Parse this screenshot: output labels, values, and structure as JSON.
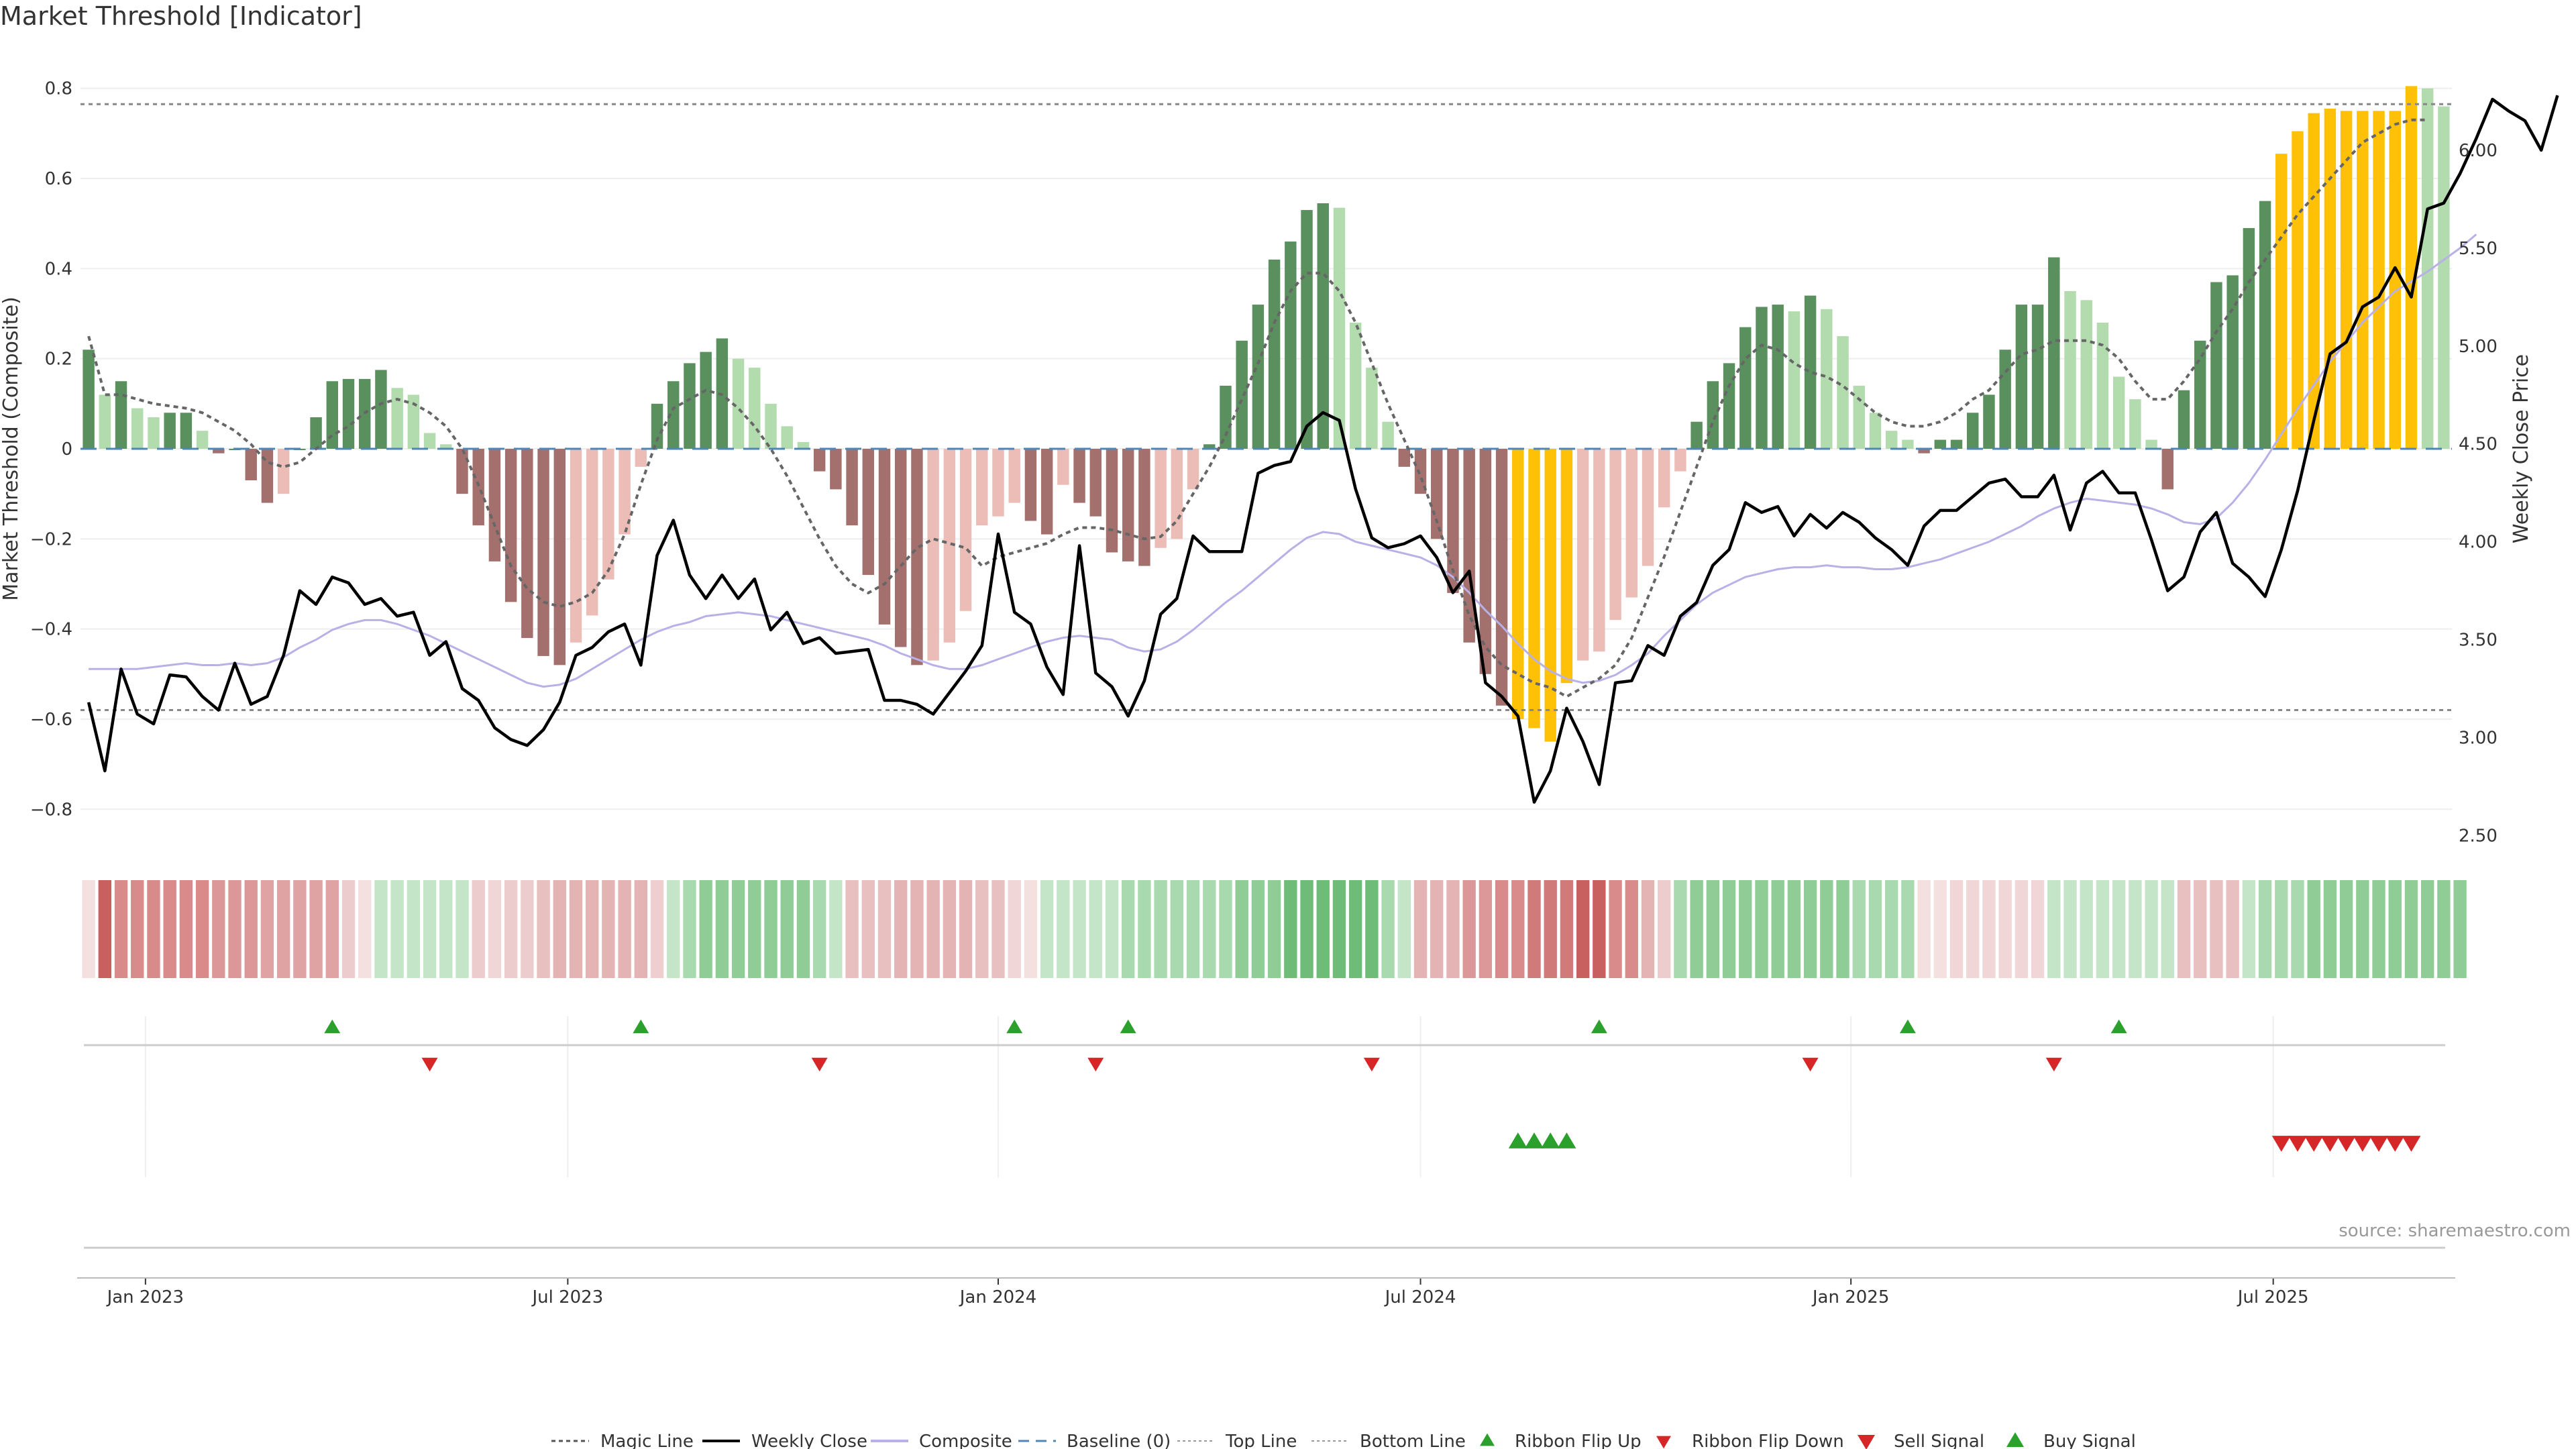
{
  "title": "Market Threshold [Indicator]",
  "source": "source: sharemaestro.com",
  "chart_data": {
    "type": "bar+line",
    "title": "Market Threshold [Indicator]",
    "ylabel": "Market Threshold (Composite)",
    "y2label": "Weekly Close Price",
    "ylim": [
      -0.88,
      0.88
    ],
    "y2lim": [
      2.45,
      6.5
    ],
    "yticks": [
      -0.8,
      -0.6,
      -0.4,
      -0.2,
      0,
      0.2,
      0.4,
      0.6,
      0.8
    ],
    "ytick_labels": [
      "−0.8",
      "−0.6",
      "−0.4",
      "−0.2",
      "0",
      "0.2",
      "0.4",
      "0.6",
      "0.8"
    ],
    "y2ticks": [
      2.5,
      3.0,
      3.5,
      4.0,
      4.5,
      5.0,
      5.5,
      6.0
    ],
    "y2tick_labels": [
      "2.50",
      "3.00",
      "3.50",
      "4.00",
      "4.50",
      "5.00",
      "5.50",
      "6.00"
    ],
    "xticks": [
      {
        "label": "Jan 2023",
        "week": 4
      },
      {
        "label": "Jul 2023",
        "week": 30
      },
      {
        "label": "Jan 2024",
        "week": 56.5
      },
      {
        "label": "Jul 2024",
        "week": 82.5
      },
      {
        "label": "Jan 2025",
        "week": 109
      },
      {
        "label": "Jul 2025",
        "week": 135
      }
    ],
    "top_line": 0.765,
    "bottom_line": -0.58,
    "baseline": 0,
    "composite_bars": [
      0.22,
      0.12,
      0.15,
      0.09,
      0.07,
      0.08,
      0.08,
      0.04,
      -0.01,
      0,
      -0.07,
      -0.12,
      -0.1,
      0,
      0.07,
      0.15,
      0.155,
      0.155,
      0.175,
      0.135,
      0.12,
      0.035,
      0.01,
      -0.1,
      -0.17,
      -0.25,
      -0.34,
      -0.42,
      -0.46,
      -0.48,
      -0.43,
      -0.37,
      -0.29,
      -0.19,
      -0.04,
      0.1,
      0.15,
      0.19,
      0.215,
      0.245,
      0.2,
      0.18,
      0.1,
      0.05,
      0.015,
      -0.05,
      -0.09,
      -0.17,
      -0.28,
      -0.39,
      -0.44,
      -0.48,
      -0.47,
      -0.43,
      -0.36,
      -0.17,
      -0.15,
      -0.12,
      -0.16,
      -0.19,
      -0.08,
      -0.12,
      -0.15,
      -0.23,
      -0.25,
      -0.26,
      -0.22,
      -0.2,
      -0.09,
      0.01,
      0.14,
      0.24,
      0.32,
      0.42,
      0.46,
      0.53,
      0.545,
      0.535,
      0.28,
      0.18,
      0.06,
      -0.04,
      -0.1,
      -0.2,
      -0.32,
      -0.43,
      -0.5,
      -0.57,
      -0.6,
      -0.62,
      -0.65,
      -0.52,
      -0.47,
      -0.45,
      -0.38,
      -0.33,
      -0.26,
      -0.13,
      -0.05,
      0.06,
      0.15,
      0.19,
      0.27,
      0.315,
      0.32,
      0.305,
      0.34,
      0.31,
      0.25,
      0.14,
      0.08,
      0.04,
      0.02,
      -0.01,
      0.02,
      0.02,
      0.08,
      0.12,
      0.22,
      0.32,
      0.32,
      0.425,
      0.35,
      0.33,
      0.28,
      0.16,
      0.11,
      0.02,
      -0.09,
      0.13,
      0.24,
      0.37,
      0.385,
      0.49,
      0.55,
      0.655,
      0.705,
      0.745,
      0.755,
      0.75,
      0.75,
      0.75,
      0.75,
      0.805,
      0.8,
      0.76
    ],
    "yellow_bars": [
      88,
      89,
      90,
      91,
      135,
      136,
      137,
      138,
      139,
      140,
      141,
      142,
      143
    ],
    "magic_line": [
      0.25,
      0.12,
      0.12,
      0.11,
      0.1,
      0.095,
      0.09,
      0.08,
      0.06,
      0.04,
      0.01,
      -0.03,
      -0.04,
      -0.03,
      0.0,
      0.03,
      0.05,
      0.08,
      0.1,
      0.11,
      0.1,
      0.08,
      0.05,
      0.0,
      -0.08,
      -0.17,
      -0.26,
      -0.31,
      -0.34,
      -0.35,
      -0.34,
      -0.32,
      -0.27,
      -0.19,
      -0.08,
      0.02,
      0.09,
      0.11,
      0.13,
      0.12,
      0.09,
      0.05,
      0.0,
      -0.06,
      -0.13,
      -0.2,
      -0.26,
      -0.3,
      -0.32,
      -0.3,
      -0.26,
      -0.22,
      -0.2,
      -0.21,
      -0.22,
      -0.26,
      -0.24,
      -0.23,
      -0.22,
      -0.21,
      -0.19,
      -0.175,
      -0.175,
      -0.18,
      -0.19,
      -0.2,
      -0.195,
      -0.16,
      -0.1,
      -0.04,
      0.03,
      0.11,
      0.19,
      0.28,
      0.35,
      0.39,
      0.39,
      0.35,
      0.28,
      0.19,
      0.1,
      0.02,
      -0.06,
      -0.16,
      -0.27,
      -0.37,
      -0.44,
      -0.48,
      -0.5,
      -0.52,
      -0.53,
      -0.55,
      -0.53,
      -0.51,
      -0.48,
      -0.42,
      -0.33,
      -0.24,
      -0.14,
      -0.04,
      0.06,
      0.14,
      0.2,
      0.23,
      0.22,
      0.19,
      0.17,
      0.16,
      0.14,
      0.11,
      0.08,
      0.06,
      0.05,
      0.05,
      0.06,
      0.08,
      0.11,
      0.13,
      0.17,
      0.21,
      0.22,
      0.24,
      0.24,
      0.24,
      0.23,
      0.2,
      0.15,
      0.11,
      0.11,
      0.15,
      0.2,
      0.26,
      0.31,
      0.37,
      0.42,
      0.47,
      0.52,
      0.56,
      0.6,
      0.64,
      0.68,
      0.7,
      0.72,
      0.73,
      0.73
    ],
    "weekly_close": [
      3.18,
      2.83,
      3.35,
      3.12,
      3.07,
      3.32,
      3.31,
      3.21,
      3.14,
      3.38,
      3.17,
      3.21,
      3.42,
      3.75,
      3.68,
      3.82,
      3.79,
      3.68,
      3.71,
      3.62,
      3.64,
      3.42,
      3.49,
      3.25,
      3.19,
      3.05,
      2.99,
      2.96,
      3.04,
      3.18,
      3.42,
      3.46,
      3.54,
      3.58,
      3.37,
      3.93,
      4.11,
      3.83,
      3.71,
      3.83,
      3.71,
      3.81,
      3.55,
      3.64,
      3.48,
      3.51,
      3.43,
      3.44,
      3.45,
      3.19,
      3.19,
      3.17,
      3.12,
      3.23,
      3.34,
      3.47,
      4.04,
      3.64,
      3.58,
      3.36,
      3.22,
      3.98,
      3.33,
      3.26,
      3.11,
      3.29,
      3.63,
      3.71,
      4.03,
      3.95,
      3.95,
      3.95,
      4.35,
      4.39,
      4.41,
      4.59,
      4.66,
      4.62,
      4.27,
      4.02,
      3.97,
      3.99,
      4.03,
      3.92,
      3.74,
      3.85,
      3.28,
      3.21,
      3.11,
      2.67,
      2.83,
      3.15,
      2.98,
      2.76,
      3.28,
      3.29,
      3.47,
      3.42,
      3.62,
      3.69,
      3.88,
      3.96,
      4.2,
      4.15,
      4.18,
      4.03,
      4.14,
      4.07,
      4.15,
      4.1,
      4.02,
      3.96,
      3.88,
      4.08,
      4.16,
      4.16,
      4.23,
      4.3,
      4.32,
      4.23,
      4.23,
      4.34,
      4.06,
      4.3,
      4.36,
      4.25,
      4.25,
      4.01,
      3.75,
      3.82,
      4.05,
      4.15,
      3.89,
      3.82,
      3.72,
      3.96,
      4.26,
      4.62,
      4.96,
      5.02,
      5.2,
      5.25,
      5.4,
      5.25,
      5.7,
      5.73,
      5.88,
      6.06,
      6.26,
      6.2,
      6.15,
      6.0,
      6.28
    ],
    "composite_line": [
      3.35,
      3.35,
      3.35,
      3.35,
      3.36,
      3.37,
      3.38,
      3.37,
      3.37,
      3.38,
      3.37,
      3.38,
      3.41,
      3.46,
      3.5,
      3.55,
      3.58,
      3.6,
      3.6,
      3.58,
      3.55,
      3.52,
      3.48,
      3.44,
      3.4,
      3.36,
      3.32,
      3.28,
      3.26,
      3.27,
      3.3,
      3.35,
      3.4,
      3.45,
      3.5,
      3.54,
      3.57,
      3.59,
      3.62,
      3.63,
      3.64,
      3.63,
      3.62,
      3.6,
      3.58,
      3.56,
      3.54,
      3.52,
      3.5,
      3.47,
      3.43,
      3.4,
      3.37,
      3.35,
      3.35,
      3.37,
      3.4,
      3.43,
      3.46,
      3.49,
      3.51,
      3.52,
      3.51,
      3.5,
      3.46,
      3.44,
      3.45,
      3.49,
      3.55,
      3.62,
      3.69,
      3.75,
      3.82,
      3.89,
      3.96,
      4.02,
      4.05,
      4.04,
      4.0,
      3.98,
      3.96,
      3.94,
      3.92,
      3.88,
      3.82,
      3.74,
      3.65,
      3.57,
      3.48,
      3.4,
      3.34,
      3.3,
      3.28,
      3.29,
      3.32,
      3.37,
      3.43,
      3.52,
      3.6,
      3.68,
      3.74,
      3.78,
      3.82,
      3.84,
      3.86,
      3.87,
      3.87,
      3.88,
      3.87,
      3.87,
      3.86,
      3.86,
      3.87,
      3.89,
      3.91,
      3.94,
      3.97,
      4.0,
      4.04,
      4.08,
      4.13,
      4.17,
      4.2,
      4.22,
      4.21,
      4.2,
      4.19,
      4.17,
      4.14,
      4.1,
      4.09,
      4.12,
      4.2,
      4.3,
      4.42,
      4.55,
      4.68,
      4.8,
      4.92,
      5.02,
      5.12,
      5.2,
      5.28,
      5.33,
      5.38,
      5.44,
      5.5,
      5.57
    ],
    "ribbon_colors": [
      "#f5e0e0",
      "#c96060",
      "#d98a8a",
      "#d98a8a",
      "#d98a8a",
      "#d98a8a",
      "#d98a8a",
      "#d98a8a",
      "#dc9898",
      "#dc9898",
      "#dc9898",
      "#e0a3a3",
      "#e0a3a3",
      "#e0a3a3",
      "#e0a3a3",
      "#e0a3a3",
      "#eccccc",
      "#f5e0e0",
      "#c5e5c8",
      "#c5e5c8",
      "#c5e5c8",
      "#c5e5c8",
      "#c5e5c8",
      "#c5e5c8",
      "#eccccc",
      "#f0d6d6",
      "#eccccc",
      "#eccccc",
      "#e8c0c0",
      "#e4b4b4",
      "#e4b4b4",
      "#e4b4b4",
      "#e4b4b4",
      "#e4b4b4",
      "#e4b4b4",
      "#eecece",
      "#c5e5c8",
      "#a9d9ae",
      "#8fcc96",
      "#8fcc96",
      "#8fcc96",
      "#8fcc96",
      "#8fcc96",
      "#8fcc96",
      "#8fcc96",
      "#a9d9ae",
      "#c5e5c8",
      "#e8c0c0",
      "#e8c0c0",
      "#e8c0c0",
      "#e4b4b4",
      "#e4b4b4",
      "#e4b4b4",
      "#e4b4b4",
      "#e4b4b4",
      "#e8c0c0",
      "#e8c0c0",
      "#f0d6d6",
      "#f5e0e0",
      "#c5e5c8",
      "#c5e5c8",
      "#c5e5c8",
      "#c5e5c8",
      "#c5e5c8",
      "#a9d9ae",
      "#a9d9ae",
      "#a9d9ae",
      "#a9d9ae",
      "#a9d9ae",
      "#a9d9ae",
      "#a9d9ae",
      "#8fcc96",
      "#8fcc96",
      "#8fcc96",
      "#6fbc78",
      "#6fbc78",
      "#6fbc78",
      "#6fbc78",
      "#6fbc78",
      "#6fbc78",
      "#a9d9ae",
      "#c5e5c8",
      "#e4b4b4",
      "#e4b4b4",
      "#e4b4b4",
      "#dc9898",
      "#dc9898",
      "#d98a8a",
      "#d98a8a",
      "#d07a7a",
      "#d07a7a",
      "#d07a7a",
      "#c96060",
      "#c96060",
      "#d98a8a",
      "#d98a8a",
      "#e4b4b4",
      "#eccccc",
      "#a9d9ae",
      "#8fcc96",
      "#8fcc96",
      "#8fcc96",
      "#8fcc96",
      "#8fcc96",
      "#8fcc96",
      "#8fcc96",
      "#8fcc96",
      "#8fcc96",
      "#8fcc96",
      "#a9d9ae",
      "#a9d9ae",
      "#a9d9ae",
      "#a9d9ae",
      "#f5e0e0",
      "#f5e0e0",
      "#f0d6d6",
      "#f0d6d6",
      "#f0d6d6",
      "#f0d6d6",
      "#f0d6d6",
      "#f0d6d6",
      "#c5e5c8",
      "#c5e5c8",
      "#c5e5c8",
      "#c5e5c8",
      "#c5e5c8",
      "#c5e5c8",
      "#c5e5c8",
      "#c5e5c8",
      "#e8c0c0",
      "#e8c0c0",
      "#e8c0c0",
      "#e8c0c0",
      "#c5e5c8",
      "#a9d9ae",
      "#a9d9ae",
      "#a9d9ae",
      "#8fcc96",
      "#8fcc96",
      "#8fcc96",
      "#8fcc96",
      "#8fcc96",
      "#8fcc96",
      "#8fcc96",
      "#8fcc96",
      "#8fcc96",
      "#8fcc96"
    ],
    "ribbon_flip_up_weeks": [
      15,
      34,
      57,
      64,
      93,
      112,
      125
    ],
    "ribbon_flip_down_weeks": [
      21,
      45,
      62,
      79,
      106,
      121
    ],
    "buy_signal_weeks": [
      88,
      89,
      90,
      91
    ],
    "sell_signal_weeks": [
      135,
      136,
      137,
      138,
      139,
      140,
      141,
      142,
      143
    ],
    "legend": [
      "Magic Line",
      "Weekly Close",
      "Composite",
      "Baseline (0)",
      "Top Line",
      "Bottom Line",
      "Ribbon Flip Up",
      "Ribbon Flip Down",
      "Sell Signal",
      "Buy Signal"
    ],
    "legend_position": "bottom-center",
    "colors": {
      "pos_strong": "#5a8f5e",
      "pos_weak": "#b2dbae",
      "neg_strong": "#a3706e",
      "neg_weak": "#ecbcb7",
      "extreme": "#ffc107",
      "close": "#000000",
      "composite": "#b8b0e6",
      "magic": "#666666",
      "baseline": "#4f86b5",
      "up_marker": "#2ca02c",
      "down_marker": "#d62728"
    }
  }
}
